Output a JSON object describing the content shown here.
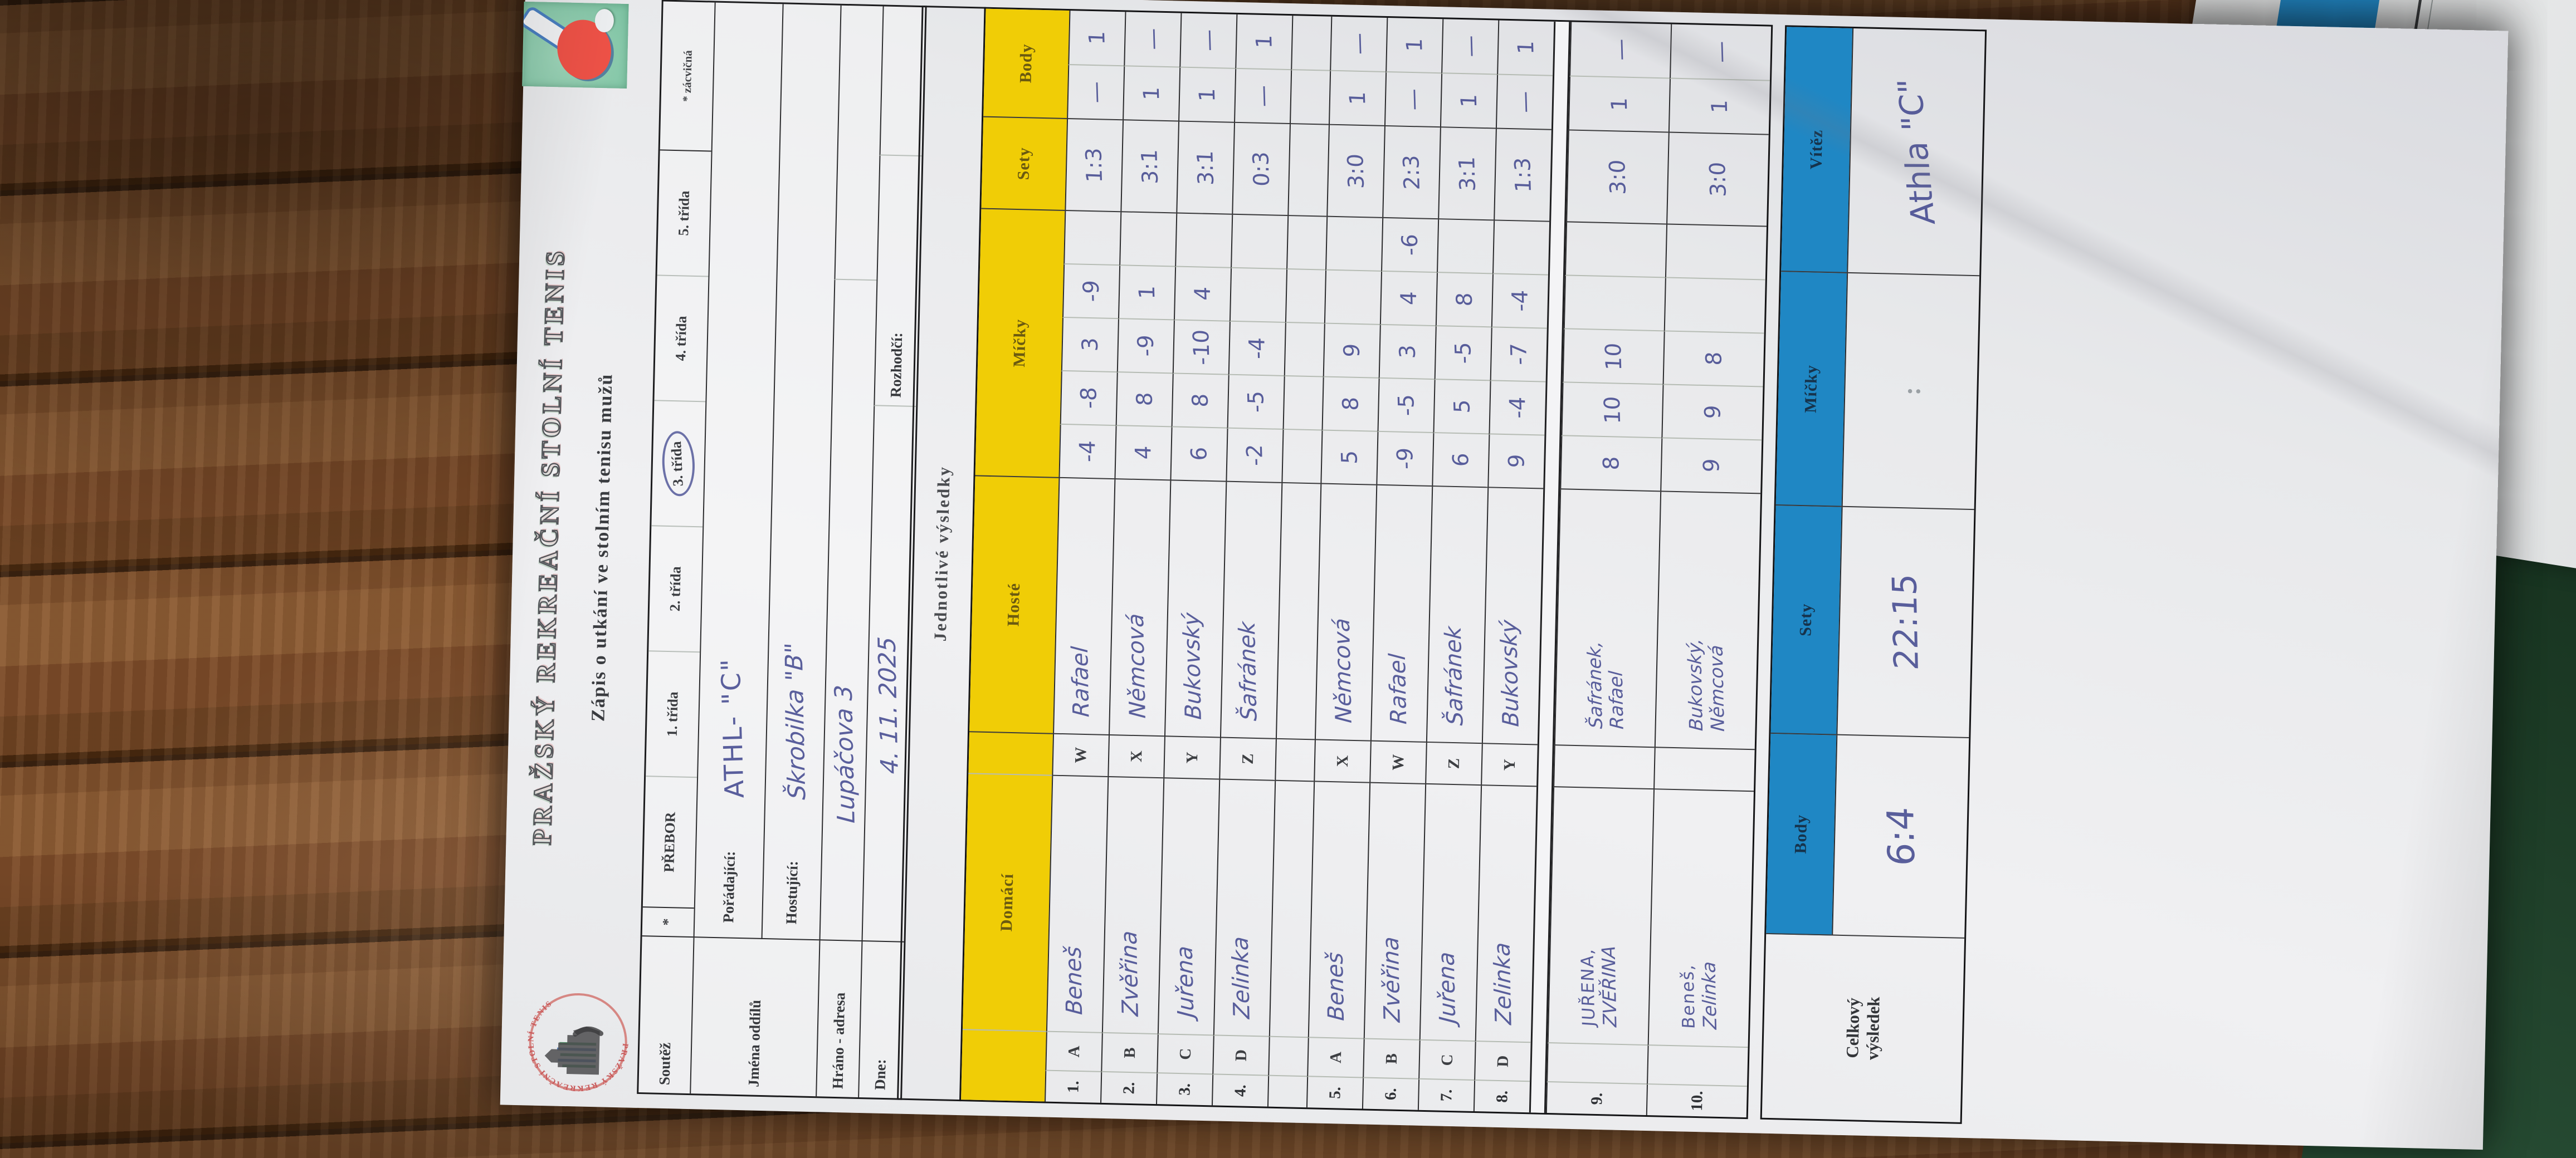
{
  "scene": {
    "wood_color": "#7a4a28",
    "green_table_color": "#1c3a25",
    "second_sheet_blue": "#2389c7"
  },
  "form": {
    "title": "PRAŽSKÝ REKREAČNÍ STOLNÍ TENIS",
    "subtitle": "Zápis o utkání ve stolním tenisu mužů",
    "club_logo_ring_text": "PRAŽSKÝ REKREAČNÍ STOLNÍ TENIS",
    "colors": {
      "header_yellow": "#f0cd06",
      "summary_blue": "#1f87c4",
      "pen_ink": "#3e448c"
    },
    "info": {
      "soutez_label": "Soutěž",
      "star": "*",
      "prebor": "PŘEBOR",
      "tridy": [
        "1. třída",
        "2. třída",
        "3. třída",
        "4. třída",
        "5. třída"
      ],
      "zacvicna": "* zácvičná",
      "jmena_oddilu": "Jména oddílů",
      "poradajici_label": "Pořádající:",
      "poradajici_value": "ATHL- \"C\"",
      "hostujici_label": "Hostující:",
      "hostujici_value": "Škrobilka \"B\"",
      "hrano_label": "Hráno - adresa",
      "hrano_value": "Lupáčova 3",
      "dne_label": "Dne:",
      "dne_value": "4. 11. 2025",
      "rozhodci_label": "Rozhodčí:"
    },
    "results_title": "Jednotlivé výsledky",
    "header": {
      "domaci": "Domácí",
      "hoste": "Hosté",
      "micky": "Míčky",
      "sety": "Sety",
      "body": "Body"
    },
    "matches": [
      {
        "n": "1.",
        "dl": "A",
        "d1": "Beneš",
        "d2": "",
        "hl": "W",
        "h1": "Rafael",
        "h2": "",
        "m": [
          "-4",
          "-8",
          "3",
          "-9",
          ""
        ],
        "sety": "1:3",
        "bd": "—",
        "bh": "1"
      },
      {
        "n": "2.",
        "dl": "B",
        "d1": "Zvěřina",
        "d2": "",
        "hl": "X",
        "h1": "Němcová",
        "h2": "",
        "m": [
          "4",
          "8",
          "-9",
          "1",
          ""
        ],
        "sety": "3:1",
        "bd": "1",
        "bh": "—"
      },
      {
        "n": "3.",
        "dl": "C",
        "d1": "Juřena",
        "d2": "",
        "hl": "Y",
        "h1": "Bukovský",
        "h2": "",
        "m": [
          "6",
          "8",
          "-10",
          "4",
          ""
        ],
        "sety": "3:1",
        "bd": "1",
        "bh": "—"
      },
      {
        "n": "4.",
        "dl": "D",
        "d1": "Zelinka",
        "d2": "",
        "hl": "Z",
        "h1": "Šafránek",
        "h2": "",
        "m": [
          "-2",
          "-5",
          "-4",
          "",
          ""
        ],
        "sety": "0:3",
        "bd": "—",
        "bh": "1"
      },
      {
        "n": "5.",
        "dl": "A",
        "d1": "Beneš",
        "d2": "",
        "hl": "X",
        "h1": "Němcová",
        "h2": "",
        "m": [
          "5",
          "8",
          "9",
          "",
          ""
        ],
        "sety": "3:0",
        "bd": "1",
        "bh": "—"
      },
      {
        "n": "6.",
        "dl": "B",
        "d1": "Zvěřina",
        "d2": "",
        "hl": "W",
        "h1": "Rafael",
        "h2": "",
        "m": [
          "-9",
          "-5",
          "3",
          "4",
          "-6"
        ],
        "sety": "2:3",
        "bd": "—",
        "bh": "1"
      },
      {
        "n": "7.",
        "dl": "C",
        "d1": "Juřena",
        "d2": "",
        "hl": "Z",
        "h1": "Šafránek",
        "h2": "",
        "m": [
          "6",
          "5",
          "-5",
          "8",
          ""
        ],
        "sety": "3:1",
        "bd": "1",
        "bh": "—"
      },
      {
        "n": "8.",
        "dl": "D",
        "d1": "Zelinka",
        "d2": "",
        "hl": "Y",
        "h1": "Bukovský",
        "h2": "",
        "m": [
          "9",
          "-4",
          "-7",
          "-4",
          ""
        ],
        "sety": "1:3",
        "bd": "—",
        "bh": "1"
      },
      {
        "n": "9.",
        "dl": "",
        "d1": "JUŘENA,",
        "d2": "ZVĚŘINA",
        "hl": "",
        "h1": "Šafránek,",
        "h2": "Rafael",
        "m": [
          "8",
          "10",
          "10",
          "",
          ""
        ],
        "sety": "3:0",
        "bd": "1",
        "bh": "—"
      },
      {
        "n": "10.",
        "dl": "",
        "d1": "Beneš,",
        "d2": "Zelinka",
        "hl": "",
        "h1": "Bukovský,",
        "h2": "Němcová",
        "m": [
          "9",
          "9",
          "8",
          "",
          ""
        ],
        "sety": "3:0",
        "bd": "1",
        "bh": "—"
      }
    ],
    "summary": {
      "label_line1": "Celkový",
      "label_line2": "výsledek",
      "body_header": "Body",
      "sety_header": "Sety",
      "micky_header": "Míčky",
      "vitez_header": "Vítěz",
      "body_value": "6:4",
      "sety_value": "22:15",
      "micky_value": ":",
      "vitez_value": "Athla \"C\""
    }
  }
}
